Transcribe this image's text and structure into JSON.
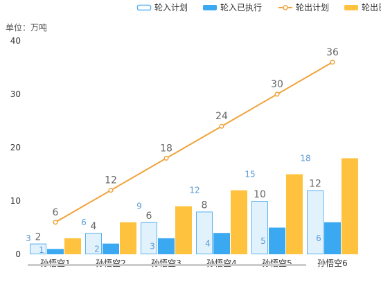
{
  "chart_data": {
    "type": "bar",
    "unit_label": "单位：万吨",
    "categories": [
      "孙悟空1",
      "孙悟空2",
      "孙悟空3",
      "孙悟空4",
      "孙悟空5",
      "孙悟空6"
    ],
    "ylim": [
      0,
      40
    ],
    "yticks": [
      0,
      10,
      20,
      30,
      40
    ],
    "grid": false,
    "legend_position": "top-right",
    "series": [
      {
        "name": "轮入计划",
        "kind": "bar",
        "style": "outline",
        "values": [
          2,
          4,
          6,
          8,
          10,
          12
        ],
        "color": "#5ab1ef",
        "fill": "#e2f2fd"
      },
      {
        "name": "轮入已执行",
        "kind": "bar",
        "style": "solid",
        "values": [
          1,
          2,
          3,
          4,
          5,
          6
        ],
        "color": "#3ba9f1"
      },
      {
        "name": "轮出计划",
        "kind": "line",
        "values": [
          6,
          12,
          18,
          24,
          30,
          36
        ],
        "color": "#f0a33a"
      },
      {
        "name": "轮出已执行",
        "kind": "bar",
        "style": "solid",
        "values": [
          3,
          6,
          9,
          12,
          15,
          18
        ],
        "color": "#ffc23f"
      }
    ],
    "overlay_labels": [
      3,
      6,
      9,
      12,
      15,
      18
    ],
    "colors": {
      "axis_text": "#333333",
      "value_text": "#666666",
      "inner_label": "#5a9bd5",
      "scrollbar": "#cccccc"
    }
  }
}
